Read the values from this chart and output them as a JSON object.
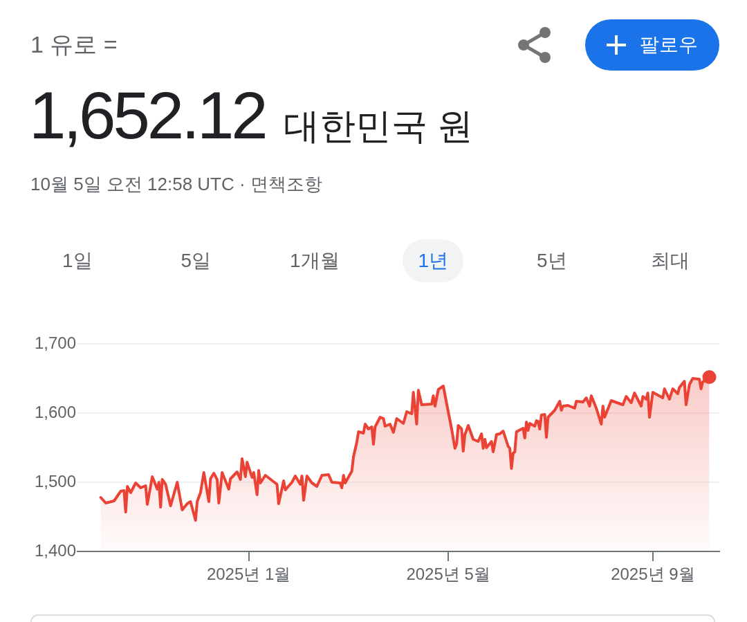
{
  "chart_data": {
    "type": "area",
    "title": "1 유로 =",
    "subtitle": "1,652.12 대한민국 원",
    "annotations": [
      "10월 5일 오전 12:58 UTC · 면책조항",
      "팔로우",
      "1일",
      "5일",
      "1개월",
      "1년",
      "5년",
      "최대"
    ],
    "x": [
      "2024-10-04",
      "2024-10-07",
      "2024-10-12",
      "2024-10-16",
      "2024-10-18",
      "2024-10-19",
      "2024-10-20",
      "2024-10-22",
      "2024-10-25",
      "2024-10-28",
      "2024-10-31",
      "2024-11-01",
      "2024-11-04",
      "2024-11-07",
      "2024-11-08",
      "2024-11-09",
      "2024-11-10",
      "2024-11-12",
      "2024-11-15",
      "2024-11-19",
      "2024-11-22",
      "2024-11-25",
      "2024-11-27",
      "2024-11-30",
      "2024-12-01",
      "2024-12-03",
      "2024-12-05",
      "2024-12-08",
      "2024-12-09",
      "2024-12-11",
      "2024-12-13",
      "2024-12-14",
      "2024-12-16",
      "2024-12-20",
      "2024-12-21",
      "2024-12-25",
      "2024-12-27",
      "2024-12-28",
      "2024-12-30",
      "2024-12-31",
      "2025-01-03",
      "2025-01-04",
      "2025-01-06",
      "2025-01-07",
      "2025-01-08",
      "2025-01-11",
      "2025-01-18",
      "2025-01-19",
      "2025-01-22",
      "2025-01-23",
      "2025-01-27",
      "2025-01-29",
      "2025-02-01",
      "2025-02-02",
      "2025-02-03",
      "2025-02-05",
      "2025-02-08",
      "2025-02-11",
      "2025-02-14",
      "2025-02-18",
      "2025-02-20",
      "2025-02-25",
      "2025-02-26",
      "2025-02-27",
      "2025-02-28",
      "2025-03-04",
      "2025-03-05",
      "2025-03-07",
      "2025-03-08",
      "2025-03-11",
      "2025-03-12",
      "2025-03-14",
      "2025-03-16",
      "2025-03-17",
      "2025-03-18",
      "2025-03-21",
      "2025-03-23",
      "2025-03-24",
      "2025-03-27",
      "2025-03-29",
      "2025-03-31",
      "2025-04-04",
      "2025-04-06",
      "2025-04-09",
      "2025-04-10",
      "2025-04-12",
      "2025-04-13",
      "2025-04-15",
      "2025-04-21",
      "2025-04-22",
      "2025-04-23",
      "2025-04-25",
      "2025-04-28",
      "2025-04-30",
      "2025-05-03",
      "2025-05-05",
      "2025-05-06",
      "2025-05-07",
      "2025-05-09",
      "2025-05-10",
      "2025-05-11",
      "2025-05-13",
      "2025-05-16",
      "2025-05-19",
      "2025-05-21",
      "2025-05-22",
      "2025-05-23",
      "2025-05-24",
      "2025-05-27",
      "2025-05-28",
      "2025-05-30",
      "2025-06-01",
      "2025-06-03",
      "2025-06-06",
      "2025-06-07",
      "2025-06-08",
      "2025-06-09",
      "2025-06-10",
      "2025-06-11",
      "2025-06-15",
      "2025-06-16",
      "2025-06-17",
      "2025-06-18",
      "2025-06-19",
      "2025-06-22",
      "2025-06-23",
      "2025-06-24",
      "2025-06-25",
      "2025-06-26",
      "2025-06-28",
      "2025-06-29",
      "2025-06-30",
      "2025-07-04",
      "2025-07-07",
      "2025-07-08",
      "2025-07-09",
      "2025-07-12",
      "2025-07-16",
      "2025-07-17",
      "2025-07-21",
      "2025-07-23",
      "2025-07-25",
      "2025-07-26",
      "2025-07-29",
      "2025-08-01",
      "2025-08-02",
      "2025-08-03",
      "2025-08-07",
      "2025-08-14",
      "2025-08-16",
      "2025-08-19",
      "2025-08-21",
      "2025-08-25",
      "2025-08-26",
      "2025-08-28",
      "2025-08-29",
      "2025-08-30",
      "2025-09-01",
      "2025-09-07",
      "2025-09-08",
      "2025-09-11",
      "2025-09-13",
      "2025-09-16",
      "2025-09-17",
      "2025-09-20",
      "2025-09-21",
      "2025-09-23",
      "2025-09-25",
      "2025-09-29",
      "2025-09-30",
      "2025-10-01",
      "2025-10-04",
      "2025-10-05"
    ],
    "values": [
      1478,
      1470,
      1473,
      1487,
      1488,
      1457,
      1494,
      1485,
      1499,
      1492,
      1495,
      1468,
      1508,
      1490,
      1500,
      1464,
      1504,
      1497,
      1466,
      1500,
      1460,
      1469,
      1472,
      1445,
      1472,
      1485,
      1514,
      1472,
      1505,
      1513,
      1504,
      1470,
      1514,
      1490,
      1505,
      1515,
      1504,
      1534,
      1508,
      1529,
      1507,
      1514,
      1482,
      1517,
      1499,
      1510,
      1497,
      1469,
      1502,
      1489,
      1500,
      1509,
      1497,
      1509,
      1474,
      1509,
      1499,
      1494,
      1510,
      1511,
      1500,
      1499,
      1492,
      1510,
      1499,
      1516,
      1537,
      1558,
      1573,
      1571,
      1584,
      1577,
      1580,
      1555,
      1580,
      1594,
      1592,
      1581,
      1584,
      1572,
      1592,
      1585,
      1602,
      1599,
      1630,
      1584,
      1633,
      1612,
      1613,
      1625,
      1610,
      1634,
      1639,
      1614,
      1577,
      1549,
      1555,
      1582,
      1577,
      1545,
      1569,
      1582,
      1562,
      1559,
      1570,
      1549,
      1562,
      1550,
      1559,
      1544,
      1569,
      1570,
      1574,
      1552,
      1549,
      1520,
      1542,
      1544,
      1573,
      1578,
      1564,
      1587,
      1575,
      1585,
      1581,
      1589,
      1588,
      1577,
      1597,
      1598,
      1565,
      1594,
      1604,
      1617,
      1604,
      1610,
      1611,
      1607,
      1617,
      1616,
      1622,
      1610,
      1625,
      1607,
      1584,
      1610,
      1594,
      1618,
      1612,
      1624,
      1615,
      1629,
      1610,
      1624,
      1620,
      1629,
      1594,
      1630,
      1622,
      1635,
      1620,
      1635,
      1628,
      1637,
      1646,
      1612,
      1641,
      1650,
      1649,
      1635,
      1645,
      1649,
      1652
    ],
    "color": "#ea4335",
    "xlim": [
      "2024-09-20",
      "2025-10-11"
    ],
    "xticks": [
      {
        "value": "2025-01",
        "label": "2025년 1월"
      },
      {
        "value": "2025-05",
        "label": "2025년 5월"
      },
      {
        "value": "2025-09",
        "label": "2025년 9월"
      }
    ],
    "ylim": [
      1400,
      1700
    ],
    "yticks": [
      {
        "value": 1400,
        "label": "1,400"
      },
      {
        "value": 1500,
        "label": "1,500"
      },
      {
        "value": 1600,
        "label": "1,600"
      },
      {
        "value": 1700,
        "label": "1,700"
      }
    ],
    "grid": "y"
  }
}
